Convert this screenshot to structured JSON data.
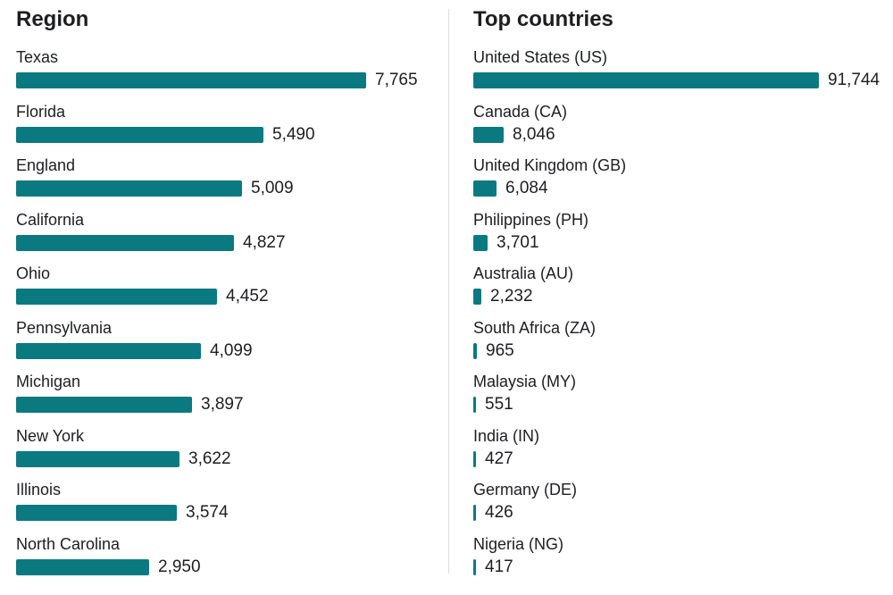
{
  "chart_data": [
    {
      "type": "bar",
      "orientation": "horizontal",
      "title": "Region",
      "categories": [
        "Texas",
        "Florida",
        "England",
        "California",
        "Ohio",
        "Pennsylvania",
        "Michigan",
        "New York",
        "Illinois",
        "North Carolina"
      ],
      "values": [
        7765,
        5490,
        5009,
        4827,
        4452,
        4099,
        3897,
        3622,
        3574,
        2950
      ],
      "value_labels": [
        "7,765",
        "5,490",
        "5,009",
        "4,827",
        "4,452",
        "4,099",
        "3,897",
        "3,622",
        "3,574",
        "2,950"
      ],
      "bar_color": "#0b7a80",
      "grid": false
    },
    {
      "type": "bar",
      "orientation": "horizontal",
      "title": "Top countries",
      "categories": [
        "United States (US)",
        "Canada (CA)",
        "United Kingdom (GB)",
        "Philippines (PH)",
        "Australia (AU)",
        "South Africa (ZA)",
        "Malaysia (MY)",
        "India (IN)",
        "Germany (DE)",
        "Nigeria (NG)"
      ],
      "values": [
        91744,
        8046,
        6084,
        3701,
        2232,
        965,
        551,
        427,
        426,
        417
      ],
      "value_labels": [
        "91,744",
        "8,046",
        "6,084",
        "3,701",
        "2,232",
        "965",
        "551",
        "427",
        "426",
        "417"
      ],
      "bar_color": "#0b7a80",
      "grid": false
    }
  ]
}
